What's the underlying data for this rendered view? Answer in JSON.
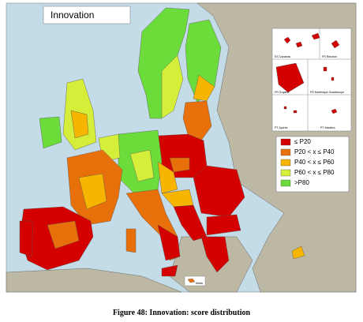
{
  "title": "Innovation",
  "legend": [
    {
      "label": "≤ P20",
      "color": "#d40000"
    },
    {
      "label": "P20 < x ≤ P40",
      "color": "#e8700a"
    },
    {
      "label": "P40 < x ≤ P60",
      "color": "#f7b500"
    },
    {
      "label": "P60 < x ≤ P80",
      "color": "#d4ee3a"
    },
    {
      "label": ">P80",
      "color": "#6cdc3a"
    }
  ],
  "insets": [
    "ES Canarias",
    "FR Réunion",
    "FR Guyane",
    "FR Martinique Guadeloupe",
    "PT Açores",
    "PT Madeira"
  ],
  "malta": "Malta",
  "caption": "Figure 48: Innovation: score distribution"
}
